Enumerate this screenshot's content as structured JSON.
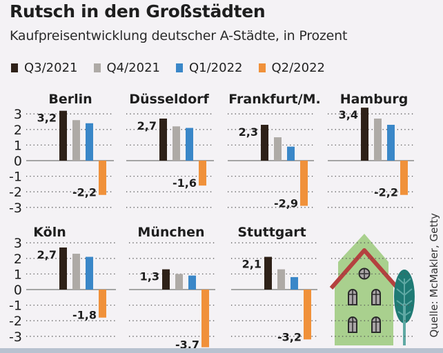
{
  "header": {
    "title": "Rutsch in den Großstädten",
    "subtitle": "Kaufpreisentwicklung deutscher A-Städte, in Prozent"
  },
  "source": "Quelle: McMakler, Getty",
  "illustration": {
    "icon": "house-with-tree-icon",
    "colors": {
      "wall": "#a9d08e",
      "roof": "#b4413f",
      "tree": "#1f7a74"
    }
  },
  "chart_data": {
    "type": "bar",
    "title": "Rutsch in den Großstädten",
    "subtitle": "Kaufpreisentwicklung deutscher A-Städte, in Prozent",
    "xlabel": "",
    "ylabel": "Prozent",
    "ylim": [
      -3,
      3
    ],
    "yticks": [
      "3",
      "2",
      "1",
      "0",
      "-1",
      "-2",
      "-3"
    ],
    "ytick_values": [
      3,
      2,
      1,
      0,
      -1,
      -2,
      -3
    ],
    "grid": "dotted horizontal",
    "legend_position": "top-left",
    "series": [
      {
        "name": "Q3/2021",
        "color": "#2e2118"
      },
      {
        "name": "Q4/2021",
        "color": "#aeaaa6"
      },
      {
        "name": "Q1/2022",
        "color": "#3a87c8"
      },
      {
        "name": "Q2/2022",
        "color": "#f0913a"
      }
    ],
    "panels": [
      {
        "city": "Berlin",
        "values": [
          3.2,
          2.6,
          2.4,
          -2.2
        ],
        "labels": {
          "first": "3,2",
          "last": "-2,2"
        }
      },
      {
        "city": "Düsseldorf",
        "values": [
          2.7,
          2.2,
          2.1,
          -1.6
        ],
        "labels": {
          "first": "2,7",
          "last": "-1,6"
        }
      },
      {
        "city": "Frankfurt/M.",
        "values": [
          2.3,
          1.5,
          0.9,
          -2.9
        ],
        "labels": {
          "first": "2,3",
          "last": "-2,9"
        }
      },
      {
        "city": "Hamburg",
        "values": [
          3.4,
          2.7,
          2.3,
          -2.2
        ],
        "labels": {
          "first": "3,4",
          "last": "-2,2"
        }
      },
      {
        "city": "Köln",
        "values": [
          2.7,
          2.3,
          2.1,
          -1.8
        ],
        "labels": {
          "first": "2,7",
          "last": "-1,8"
        }
      },
      {
        "city": "München",
        "values": [
          1.3,
          1.0,
          0.9,
          -3.7
        ],
        "labels": {
          "first": "1,3",
          "last": "-3,7"
        }
      },
      {
        "city": "Stuttgart",
        "values": [
          2.1,
          1.3,
          0.8,
          -3.2
        ],
        "labels": {
          "first": "2,1",
          "last": "-3,2"
        }
      }
    ]
  }
}
